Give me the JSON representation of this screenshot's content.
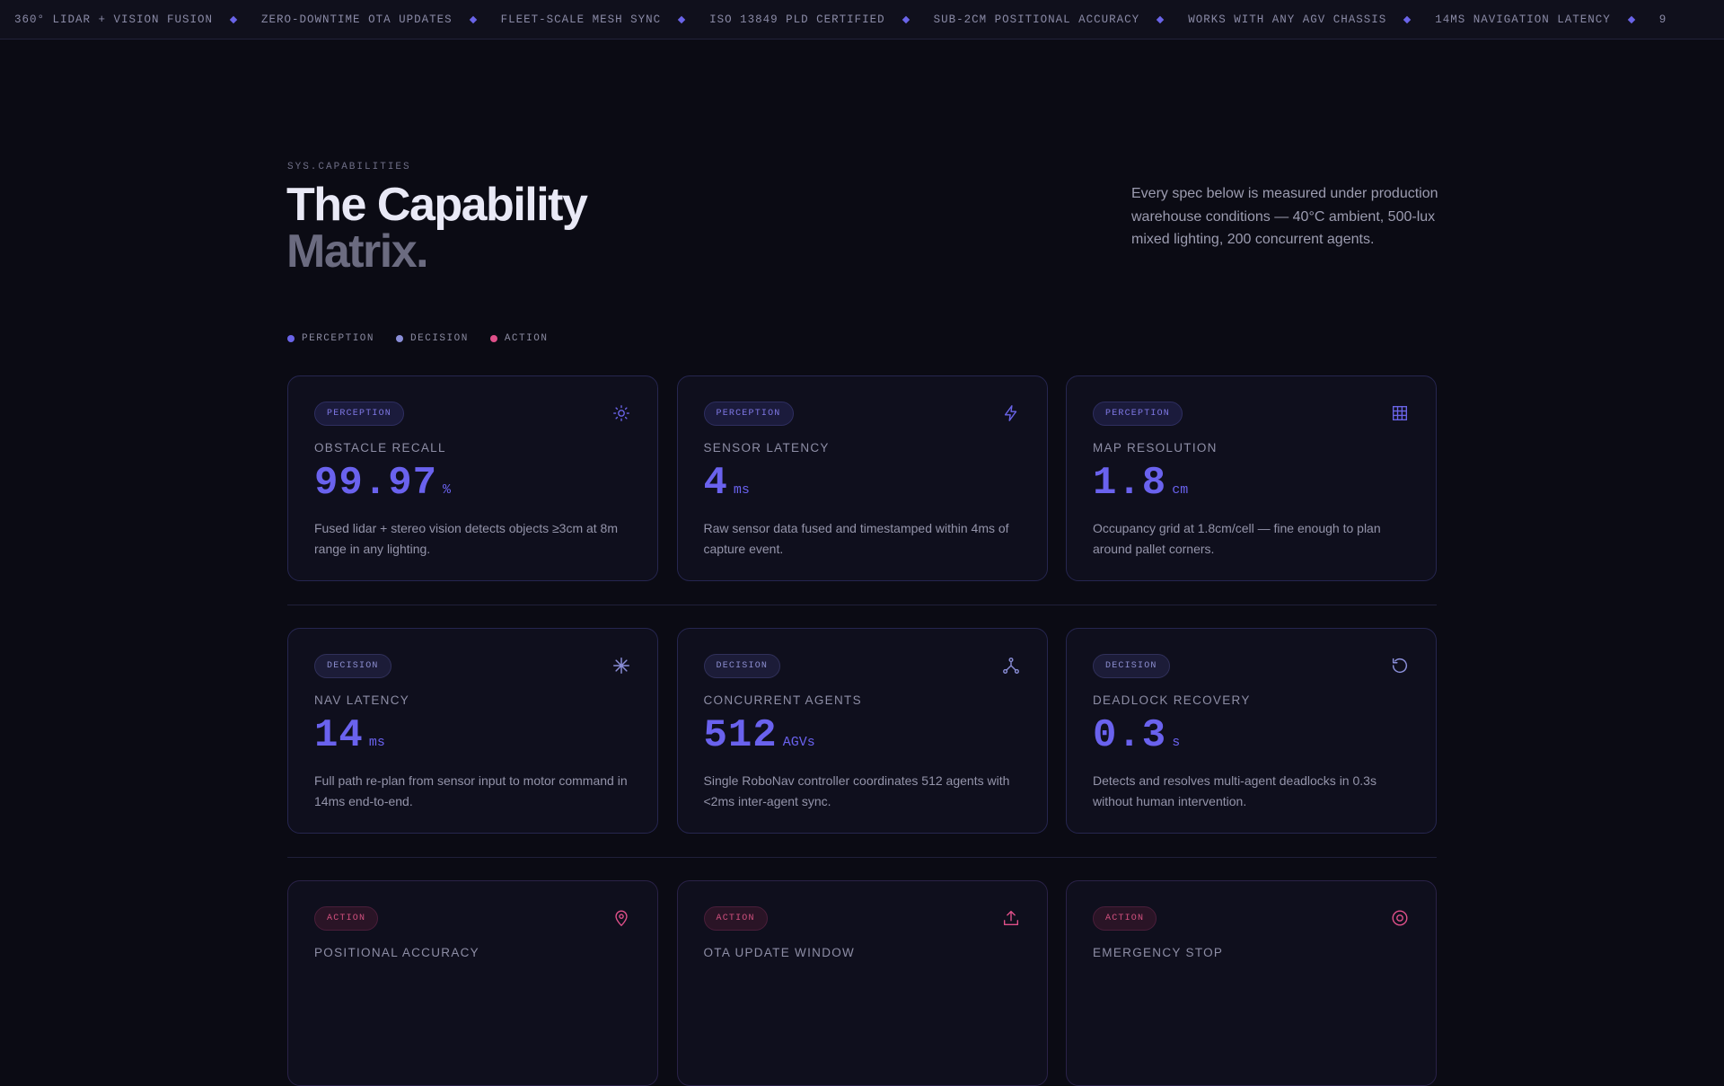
{
  "ticker": {
    "items": [
      "360° LIDAR + VISION FUSION",
      "ZERO-DOWNTIME OTA UPDATES",
      "FLEET-SCALE MESH SYNC",
      "ISO 13849 PLD CERTIFIED",
      "SUB-2CM POSITIONAL ACCURACY",
      "WORKS WITH ANY AGV CHASSIS",
      "14MS NAVIGATION LATENCY",
      "9"
    ]
  },
  "header": {
    "eyebrow": "SYS.CAPABILITIES",
    "title_line1": "The Capability",
    "title_line2": "Matrix.",
    "intro": "Every spec below is measured under production warehouse conditions — 40°C ambient, 500-lux mixed lighting, 200 concurrent agents."
  },
  "legend": {
    "perception": "PERCEPTION",
    "decision": "DECISION",
    "action": "ACTION"
  },
  "colors": {
    "perception": "#6a64e8",
    "decision": "#8a8ed8",
    "action": "#e0508a"
  },
  "cards": [
    {
      "category": "PERCEPTION",
      "icon": "sun-icon",
      "label": "OBSTACLE RECALL",
      "value": "99.97",
      "unit": "%",
      "desc": "Fused lidar + stereo vision detects objects ≥3cm at 8m range in any lighting."
    },
    {
      "category": "PERCEPTION",
      "icon": "lightning-icon",
      "label": "SENSOR LATENCY",
      "value": "4",
      "unit": "ms",
      "desc": "Raw sensor data fused and timestamped within 4ms of capture event."
    },
    {
      "category": "PERCEPTION",
      "icon": "grid-icon",
      "label": "MAP RESOLUTION",
      "value": "1.8",
      "unit": "cm",
      "desc": "Occupancy grid at 1.8cm/cell — fine enough to plan around pallet corners."
    },
    {
      "category": "DECISION",
      "icon": "asterisk-icon",
      "label": "NAV LATENCY",
      "value": "14",
      "unit": "ms",
      "desc": "Full path re-plan from sensor input to motor command in 14ms end-to-end."
    },
    {
      "category": "DECISION",
      "icon": "network-icon",
      "label": "CONCURRENT AGENTS",
      "value": "512",
      "unit": "AGVs",
      "desc": "Single RoboNav controller coordinates 512 agents with <2ms inter-agent sync."
    },
    {
      "category": "DECISION",
      "icon": "refresh-icon",
      "label": "DEADLOCK RECOVERY",
      "value": "0.3",
      "unit": "s",
      "desc": "Detects and resolves multi-agent deadlocks in 0.3s without human intervention."
    },
    {
      "category": "ACTION",
      "icon": "map-pin-icon",
      "label": "POSITIONAL ACCURACY",
      "value": "",
      "unit": "",
      "desc": ""
    },
    {
      "category": "ACTION",
      "icon": "upload-icon",
      "label": "OTA UPDATE WINDOW",
      "value": "",
      "unit": "",
      "desc": ""
    },
    {
      "category": "ACTION",
      "icon": "stop-circle-icon",
      "label": "EMERGENCY STOP",
      "value": "",
      "unit": "",
      "desc": ""
    }
  ]
}
